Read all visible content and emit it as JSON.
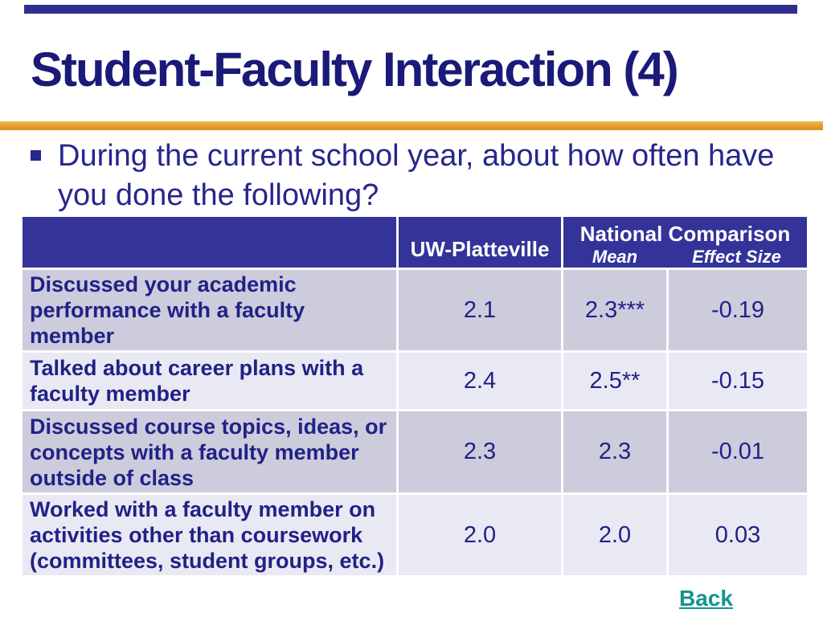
{
  "slide": {
    "title": "Student-Faculty Interaction (4)",
    "bullet_text": "During the current school year, about how often have you done the following?"
  },
  "table": {
    "header": {
      "uw_platteville": "UW-Platteville",
      "national_comparison": "National Comparison",
      "mean": "Mean",
      "effect_size": "Effect Size"
    },
    "rows": [
      {
        "label": "Discussed your academic performance with a faculty member",
        "uw_platteville": "2.1",
        "national_mean": "2.3***",
        "effect_size": "-0.19"
      },
      {
        "label": "Talked about career plans with a faculty member",
        "uw_platteville": "2.4",
        "national_mean": "2.5**",
        "effect_size": "-0.15"
      },
      {
        "label": "Discussed course topics, ideas, or concepts with a faculty member outside of class",
        "uw_platteville": "2.3",
        "national_mean": "2.3",
        "effect_size": "-0.01"
      },
      {
        "label": "Worked with a faculty member on activities other than coursework (committees, student groups, etc.)",
        "uw_platteville": "2.0",
        "national_mean": "2.0",
        "effect_size": "0.03"
      }
    ]
  },
  "footer": {
    "back_label": "Back"
  },
  "colors": {
    "header_bg": "#333399",
    "row_lavender": "#ccccdd",
    "row_light": "#e9e9f3",
    "navy_text": "#212187",
    "title_navy": "#1a1a78",
    "accent_gold": "#e99f2e",
    "link_teal": "#149490",
    "top_bar_navy": "#2e2e90"
  }
}
